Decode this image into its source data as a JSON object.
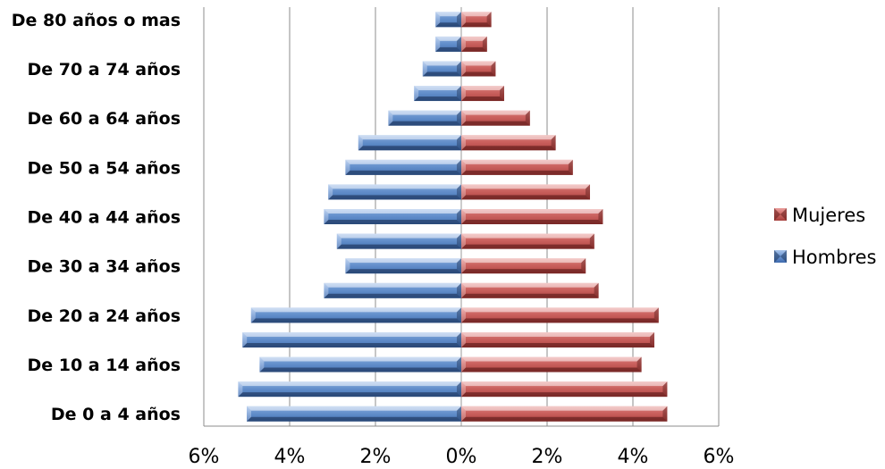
{
  "chart_data": {
    "type": "bar",
    "orientation": "horizontal",
    "style": "population-pyramid",
    "categories": [
      "De 0 a 4 años",
      "",
      "De 10 a 14 años",
      "",
      "De  20 a 24 años",
      "",
      "De 30 a 34 años",
      "",
      "De 40 a 44 años",
      "",
      "De 50 a 54 años",
      "",
      "De 60 a 64 años",
      "",
      "De 70 a 74 años",
      "",
      "De 80 años o mas"
    ],
    "series": [
      {
        "name": "Hombres",
        "color": "#4f81bd",
        "direction": "left",
        "values": [
          5.0,
          5.2,
          4.7,
          5.1,
          4.9,
          3.2,
          2.7,
          2.9,
          3.2,
          3.1,
          2.7,
          2.4,
          1.7,
          1.1,
          0.9,
          0.6,
          0.6
        ]
      },
      {
        "name": "Mujeres",
        "color": "#c0504d",
        "direction": "right",
        "values": [
          4.8,
          4.8,
          4.2,
          4.5,
          4.6,
          3.2,
          2.9,
          3.1,
          3.3,
          3.0,
          2.6,
          2.2,
          1.6,
          1.0,
          0.8,
          0.6,
          0.7
        ]
      }
    ],
    "xlim": [
      -6,
      6
    ],
    "xticks": [
      "6%",
      "4%",
      "2%",
      "0%",
      "2%",
      "4%",
      "6%"
    ],
    "grid": "vertical",
    "legend": {
      "position": "right",
      "entries": [
        "Mujeres",
        "Hombres"
      ]
    }
  }
}
